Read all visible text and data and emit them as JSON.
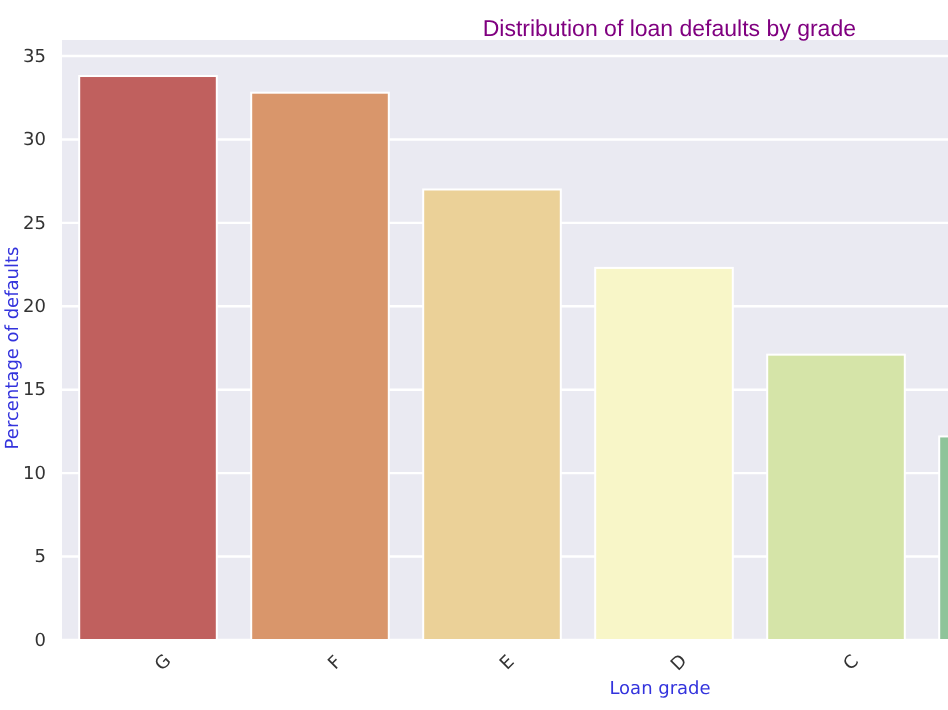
{
  "chart_data": {
    "type": "bar",
    "title": "Distribution of loan defaults by grade",
    "xlabel": "Loan grade",
    "ylabel": "Percentage of defaults",
    "categories": [
      "G",
      "F",
      "E",
      "D",
      "C",
      null
    ],
    "values": [
      33.8,
      32.8,
      27.0,
      22.3,
      17.1,
      12.2
    ],
    "colors": [
      "#c0605e",
      "#d9966b",
      "#ebd198",
      "#f8f6c8",
      "#d5e4a8",
      "#8fc49a"
    ],
    "ylim": [
      0,
      35
    ],
    "yticks": [
      0,
      5,
      10,
      15,
      20,
      25,
      30,
      35
    ],
    "grid": "y"
  }
}
